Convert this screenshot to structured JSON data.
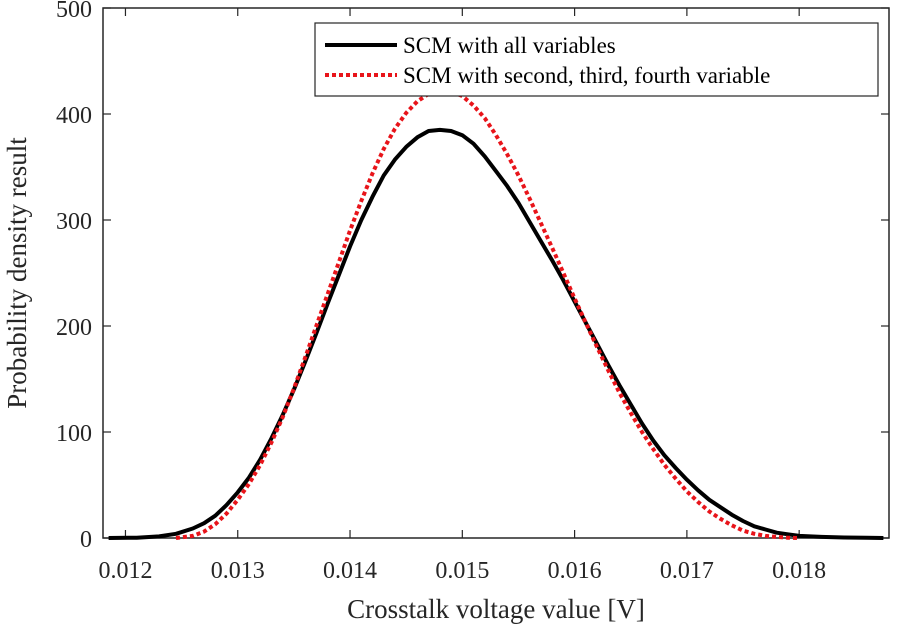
{
  "chart_data": {
    "type": "line",
    "title": "",
    "xlabel": "Crosstalk voltage value [V]",
    "ylabel": "Probability density result",
    "xlim": [
      0.0118,
      0.0188
    ],
    "ylim": [
      0,
      500
    ],
    "xticks": [
      0.012,
      0.013,
      0.014,
      0.015,
      0.016,
      0.017,
      0.018
    ],
    "xtick_labels": [
      "0.012",
      "0.013",
      "0.014",
      "0.015",
      "0.016",
      "0.017",
      "0.018"
    ],
    "yticks": [
      0,
      100,
      200,
      300,
      400,
      500
    ],
    "ytick_labels": [
      "0",
      "100",
      "200",
      "300",
      "400",
      "500"
    ],
    "grid": false,
    "legend_position": "top-right",
    "series": [
      {
        "name": "SCM with all variables",
        "color": "#000000",
        "style": "solid",
        "x": [
          0.01185,
          0.0121,
          0.0123,
          0.01245,
          0.0126,
          0.0127,
          0.0128,
          0.0129,
          0.013,
          0.0131,
          0.0132,
          0.0133,
          0.0134,
          0.0135,
          0.0136,
          0.0137,
          0.0138,
          0.0139,
          0.014,
          0.0141,
          0.0142,
          0.0143,
          0.0144,
          0.0145,
          0.0146,
          0.0147,
          0.0148,
          0.0149,
          0.015,
          0.0151,
          0.0152,
          0.0153,
          0.0154,
          0.0155,
          0.0156,
          0.0157,
          0.0158,
          0.0159,
          0.016,
          0.0161,
          0.0162,
          0.0163,
          0.0164,
          0.0165,
          0.0166,
          0.0167,
          0.0168,
          0.0169,
          0.017,
          0.0171,
          0.0172,
          0.0173,
          0.0174,
          0.0175,
          0.0176,
          0.0177,
          0.0178,
          0.0179,
          0.018,
          0.0182,
          0.0184,
          0.0186,
          0.01875
        ],
        "y": [
          0,
          0.3,
          1.5,
          4,
          9,
          14,
          21,
          31,
          43,
          57,
          74,
          94,
          116,
          140,
          166,
          193,
          221,
          248,
          275,
          300,
          322,
          342,
          357,
          369,
          378,
          384,
          385,
          384,
          380,
          372,
          360,
          346,
          332,
          316,
          298,
          280,
          262,
          243,
          223,
          203,
          183,
          163,
          144,
          126,
          108,
          92,
          78,
          66,
          55,
          45,
          36,
          29,
          22,
          16,
          11,
          8,
          5,
          3.5,
          2,
          1,
          0.5,
          0.2,
          0
        ]
      },
      {
        "name": "SCM with second, third, fourth variable",
        "color": "#e8141a",
        "style": "dotted",
        "x": [
          0.01245,
          0.0126,
          0.0127,
          0.0128,
          0.0129,
          0.013,
          0.0131,
          0.0132,
          0.0133,
          0.0134,
          0.0135,
          0.0136,
          0.0137,
          0.0138,
          0.0139,
          0.014,
          0.0141,
          0.0142,
          0.0143,
          0.0144,
          0.0145,
          0.0146,
          0.0147,
          0.0148,
          0.0149,
          0.015,
          0.0151,
          0.0152,
          0.0153,
          0.0154,
          0.0155,
          0.0156,
          0.0157,
          0.0158,
          0.0159,
          0.016,
          0.0161,
          0.0162,
          0.0163,
          0.0164,
          0.0165,
          0.0166,
          0.0167,
          0.0168,
          0.0169,
          0.017,
          0.0171,
          0.0172,
          0.0173,
          0.0174,
          0.0175,
          0.0176,
          0.0177,
          0.0178,
          0.0179,
          0.018
        ],
        "y": [
          0,
          2,
          6,
          13,
          23,
          36,
          51,
          69,
          90,
          114,
          141,
          170,
          200,
          230,
          260,
          290,
          318,
          344,
          367,
          386,
          401,
          412,
          419,
          422,
          421,
          417,
          408,
          396,
          380,
          362,
          342,
          320,
          297,
          274,
          250,
          226,
          203,
          180,
          158,
          137,
          118,
          100,
          84,
          69,
          56,
          44,
          34,
          25,
          18,
          12,
          7,
          4,
          2,
          1,
          0.3,
          0
        ]
      }
    ]
  }
}
